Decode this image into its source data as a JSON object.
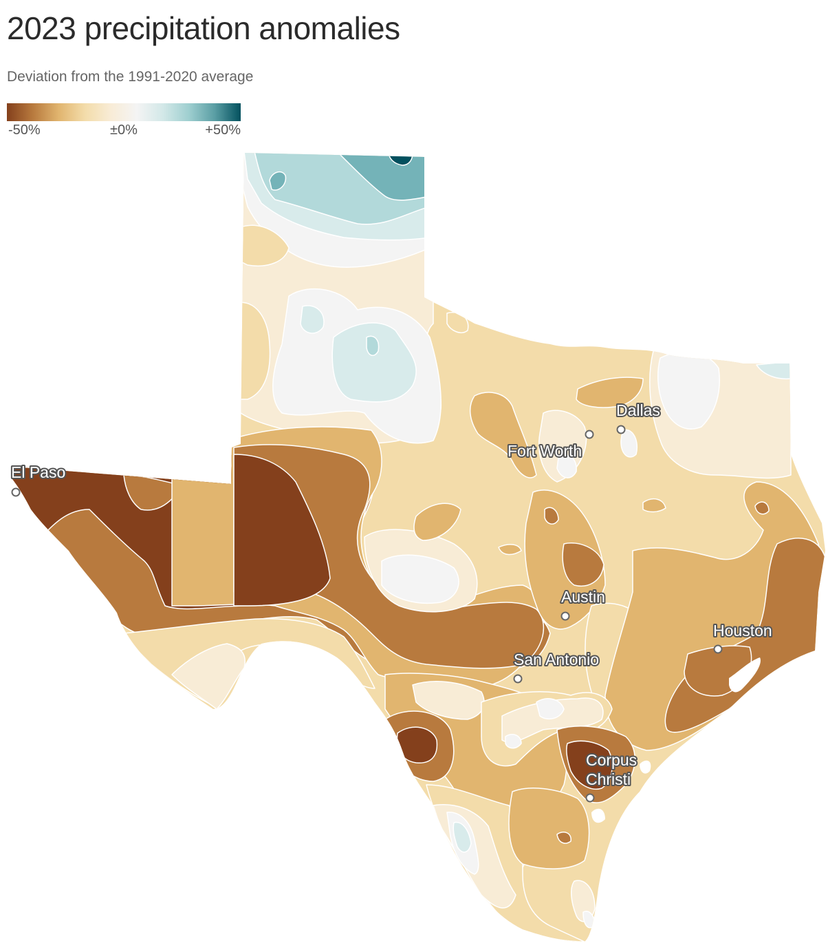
{
  "title": "2023 precipitation anomalies",
  "subtitle": "Deviation from the 1991-2020 average",
  "legend": {
    "min_label": "-50%",
    "mid_label": "±0%",
    "max_label": "+50%",
    "colors": [
      "#84401c",
      "#b87a3e",
      "#e1b56f",
      "#f3dcaa",
      "#f8ecd6",
      "#f4f4f4",
      "#d3e8e8",
      "#9fcfd0",
      "#5a9ea4",
      "#02505e"
    ]
  },
  "map": {
    "region": "Texas",
    "colors": {
      "very_dry": "#84401c",
      "dry": "#b87a3e",
      "moderately_dry": "#e1b56f",
      "slightly_dry": "#f3dcaa",
      "near_normal_dry": "#f8ecd6",
      "normal": "#f4f4f4",
      "slightly_wet": "#d8ebeb",
      "wet": "#b2d9da",
      "very_wet": "#74b3b8",
      "extreme_wet": "#02505e"
    },
    "cities": [
      {
        "name": "El Paso"
      },
      {
        "name": "Dallas"
      },
      {
        "name": "Fort Worth"
      },
      {
        "name": "Austin"
      },
      {
        "name": "Houston"
      },
      {
        "name": "San Antonio"
      },
      {
        "name": "Corpus Christi",
        "lines": [
          "Corpus",
          "Christi"
        ]
      }
    ]
  }
}
